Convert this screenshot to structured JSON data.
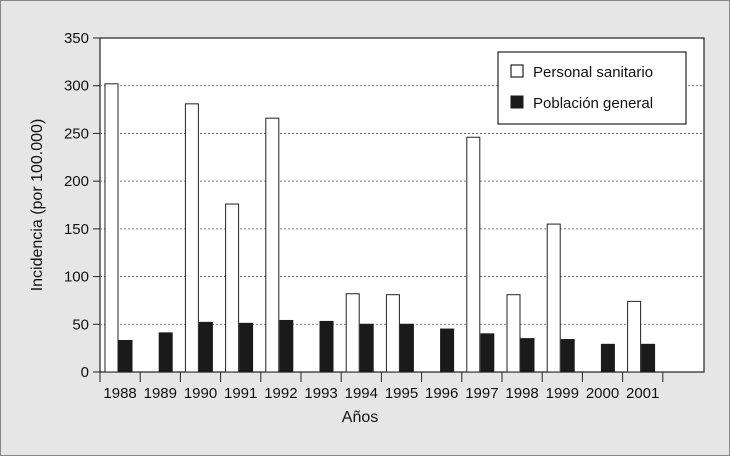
{
  "chart_data": {
    "type": "bar",
    "xlabel": "Años",
    "ylabel": "Incidencia (por 100.000)",
    "ylim": [
      0,
      350
    ],
    "yticks": [
      0,
      50,
      100,
      150,
      200,
      250,
      300,
      350
    ],
    "categories": [
      "1988",
      "1989",
      "1990",
      "1991",
      "1992",
      "1993",
      "1994",
      "1995",
      "1996",
      "1997",
      "1998",
      "1999",
      "2000",
      "2001"
    ],
    "series": [
      {
        "name": "Personal sanitario",
        "color": "#ffffff",
        "values": [
          302,
          null,
          281,
          176,
          266,
          null,
          82,
          81,
          null,
          246,
          81,
          155,
          null,
          74
        ]
      },
      {
        "name": "Población general",
        "color": "#1a1a1a",
        "values": [
          33,
          41,
          52,
          51,
          54,
          53,
          50,
          50,
          45,
          40,
          35,
          34,
          29,
          29
        ]
      }
    ],
    "grid": "horizontal-dashed",
    "legend_position": "top-right"
  }
}
